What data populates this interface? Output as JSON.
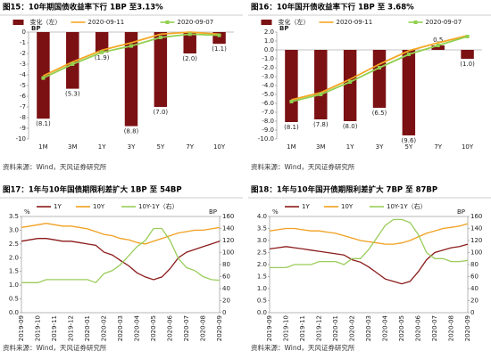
{
  "chart_data": [
    {
      "type": "bar",
      "title": "图15：10年期国债收益率下行 1BP 至3.13%",
      "source": "资料来源：Wind，天风证券研究所",
      "y_unit": "BP",
      "categories": [
        "1M",
        "3M",
        "1Y",
        "3Y",
        "5Y",
        "7Y",
        "10Y"
      ],
      "ylim": [
        -10,
        0
      ],
      "yticks": [
        0,
        -1,
        -2,
        -3,
        -4,
        -5,
        -6,
        -7,
        -8,
        -9,
        -10
      ],
      "series": [
        {
          "name": "变化（左）",
          "kind": "bar",
          "color": "#7b1113",
          "values": [
            -8.1,
            -5.3,
            -1.9,
            -8.8,
            -7.0,
            -2.0,
            -1.1
          ],
          "value_labels": [
            "(8.1)",
            "(5.3)",
            "(1.9)",
            "(8.8)",
            "(7.0)",
            "(2.0)",
            "(1.1)"
          ]
        },
        {
          "name": "2020-09-11",
          "kind": "line",
          "marker": "none",
          "color": "#f5a623",
          "values": [
            -4.1,
            -2.8,
            -1.7,
            -1.0,
            -0.2,
            0.0,
            -0.2
          ]
        },
        {
          "name": "2020-09-07",
          "kind": "line",
          "marker": "square",
          "color": "#92d050",
          "values": [
            -4.3,
            -3.0,
            -1.9,
            -1.3,
            -0.5,
            -0.2,
            -0.3
          ]
        }
      ]
    },
    {
      "type": "bar",
      "title": "图16：10年国开债收益率下行 1BP 至 3.68%",
      "source": "资料来源：Wind，天风证券研究所",
      "y_unit": "BP",
      "categories": [
        "1M",
        "3M",
        "1Y",
        "3Y",
        "5Y",
        "7Y",
        "10Y"
      ],
      "ylim": [
        -10,
        2
      ],
      "yticks": [
        {
          "value": 2,
          "label": "2.0"
        },
        {
          "value": 1,
          "label": "1.0"
        },
        {
          "value": 0,
          "label": "0.0"
        },
        {
          "value": -1,
          "label": "-1.0"
        },
        {
          "value": -2,
          "label": "-2.0"
        },
        {
          "value": -3,
          "label": "-3.0"
        },
        {
          "value": -4,
          "label": "-4.0"
        },
        {
          "value": -5,
          "label": "-5.0"
        },
        {
          "value": -6,
          "label": "-6.0"
        },
        {
          "value": -7,
          "label": "-7.0"
        },
        {
          "value": -8,
          "label": "-8.0"
        },
        {
          "value": -9,
          "label": "-9.0"
        },
        {
          "value": -10,
          "label": "-10.0"
        }
      ],
      "series": [
        {
          "name": "变化（左）",
          "kind": "bar",
          "color": "#7b1113",
          "values": [
            -8.1,
            -7.8,
            -8.0,
            -6.5,
            -9.6,
            0.5,
            -1.0
          ],
          "value_labels": [
            "(8.1)",
            "(7.8)",
            "(8.0)",
            "(6.5)",
            "(9.6)",
            "0.5",
            "(1.0)"
          ]
        },
        {
          "name": "2020-09-11",
          "kind": "line",
          "marker": "none",
          "color": "#f5a623",
          "values": [
            -5.6,
            -4.8,
            -3.3,
            -1.6,
            -0.1,
            0.8,
            1.6
          ]
        },
        {
          "name": "2020-09-07",
          "kind": "line",
          "marker": "square",
          "color": "#92d050",
          "values": [
            -5.8,
            -5.0,
            -3.6,
            -2.0,
            -0.5,
            0.5,
            1.5
          ]
        }
      ]
    },
    {
      "type": "line",
      "title": "图17：1年与10年国债期限利差扩大 1BP 至 54BP",
      "source": "资料来源：Wind，天风证券研究所",
      "y_unit": "%",
      "y2_unit": "BP",
      "categories": [
        "2019-09",
        null,
        "2019-10",
        null,
        "2019-11",
        null,
        "2019-12",
        null,
        "2020-01",
        null,
        "2020-02",
        null,
        "2020-03",
        null,
        "2020-04",
        null,
        "2020-05",
        null,
        "2020-06",
        null,
        "2020-07",
        null,
        "2020-08",
        null,
        "2020-09"
      ],
      "ylim": [
        0,
        3.5
      ],
      "yticks": [
        {
          "value": 0,
          "label": "0.0"
        },
        0.5,
        {
          "value": 1,
          "label": "1.0"
        },
        1.5,
        {
          "value": 2,
          "label": "2.0"
        },
        2.5,
        {
          "value": 3,
          "label": "3.0"
        },
        3.5
      ],
      "y2lim": [
        0,
        160
      ],
      "y2ticks": [
        0,
        20,
        40,
        60,
        80,
        100,
        120,
        140,
        160
      ],
      "series": [
        {
          "name": "1Y",
          "color": "#8b1a1a",
          "values": [
            2.6,
            2.65,
            2.7,
            2.7,
            2.65,
            2.6,
            2.6,
            2.55,
            2.5,
            2.45,
            2.2,
            2.1,
            1.9,
            1.7,
            1.45,
            1.3,
            1.2,
            1.3,
            1.6,
            2.0,
            2.2,
            2.3,
            2.4,
            2.5,
            2.6
          ]
        },
        {
          "name": "10Y",
          "color": "#f0a020",
          "values": [
            3.1,
            3.15,
            3.2,
            3.25,
            3.2,
            3.15,
            3.15,
            3.1,
            3.05,
            2.95,
            2.85,
            2.8,
            2.7,
            2.65,
            2.55,
            2.5,
            2.6,
            2.7,
            2.8,
            2.9,
            2.95,
            3.0,
            3.0,
            3.05,
            3.1
          ]
        },
        {
          "name": "10Y-1Y（右）",
          "axis": "y2",
          "color": "#9acd5a",
          "values": [
            50,
            50,
            50,
            55,
            55,
            55,
            55,
            55,
            55,
            50,
            65,
            70,
            80,
            95,
            110,
            120,
            140,
            140,
            120,
            90,
            75,
            70,
            60,
            55,
            54
          ]
        }
      ]
    },
    {
      "type": "line",
      "title": "图18：1年与10年国开债期限利差扩大 7BP 至 87BP",
      "source": "资料来源：Wind，天风证券研究所",
      "y_unit": "%",
      "y2_unit": "BP",
      "categories": [
        "2019-09",
        null,
        "2019-10",
        null,
        "2019-11",
        null,
        "2019-12",
        null,
        "2020-01",
        null,
        "2020-02",
        null,
        "2020-03",
        null,
        "2020-04",
        null,
        "2020-05",
        null,
        "2020-06",
        null,
        "2020-07",
        null,
        "2020-08",
        null,
        "2020-09"
      ],
      "ylim": [
        0,
        4
      ],
      "yticks": [
        {
          "value": 0,
          "label": "0.0"
        },
        0.5,
        {
          "value": 1,
          "label": "1.0"
        },
        1.5,
        {
          "value": 2,
          "label": "2.0"
        },
        2.5,
        {
          "value": 3,
          "label": "3.0"
        },
        3.5,
        {
          "value": 4,
          "label": "4.0"
        }
      ],
      "y2lim": [
        0,
        160
      ],
      "y2ticks": [
        0,
        20,
        40,
        60,
        80,
        100,
        120,
        140,
        160
      ],
      "series": [
        {
          "name": "1Y",
          "color": "#8b1a1a",
          "values": [
            2.65,
            2.7,
            2.75,
            2.7,
            2.65,
            2.6,
            2.55,
            2.5,
            2.45,
            2.4,
            2.2,
            2.1,
            1.9,
            1.65,
            1.4,
            1.3,
            1.2,
            1.3,
            1.7,
            2.2,
            2.5,
            2.6,
            2.7,
            2.75,
            2.85
          ]
        },
        {
          "name": "10Y",
          "color": "#f0a020",
          "values": [
            3.4,
            3.45,
            3.5,
            3.5,
            3.45,
            3.4,
            3.4,
            3.35,
            3.3,
            3.2,
            3.1,
            3.0,
            2.95,
            2.9,
            2.85,
            2.85,
            2.9,
            3.0,
            3.15,
            3.3,
            3.4,
            3.5,
            3.55,
            3.6,
            3.7
          ]
        },
        {
          "name": "10Y-1Y（右）",
          "axis": "y2",
          "color": "#9acd5a",
          "values": [
            75,
            75,
            75,
            80,
            80,
            80,
            85,
            85,
            85,
            80,
            90,
            90,
            105,
            125,
            145,
            155,
            155,
            150,
            130,
            100,
            90,
            90,
            85,
            85,
            87
          ]
        }
      ]
    }
  ]
}
